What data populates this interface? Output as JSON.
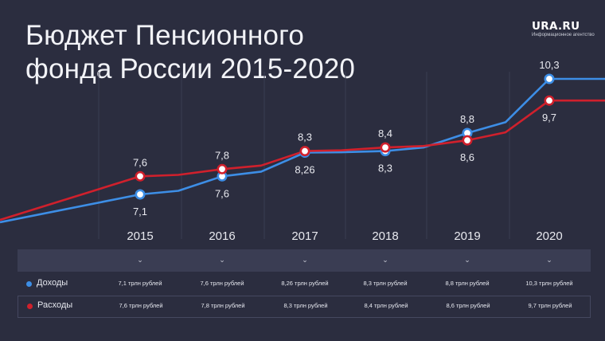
{
  "title": {
    "line1": "Бюджет Пенсионного",
    "line2": "фонда России 2015-2020"
  },
  "logo": {
    "brand": "URA.RU",
    "subtitle": "Информационное агентство"
  },
  "colors": {
    "background": "#2b2d3f",
    "income": "#3d8ee6",
    "expense": "#d0202c",
    "bar": "#3a3d53"
  },
  "table": {
    "years": [
      "2015",
      "2016",
      "2017",
      "2018",
      "2019",
      "2020"
    ],
    "chevron": "⌄",
    "income_label": "Доходы",
    "expense_label": "Расходы",
    "income_cells": [
      "7,1 трлн рублей",
      "7,6 трлн рублей",
      "8,26 трлн рублей",
      "8,3 трлн рублей",
      "8,8 трлн рублей",
      "10,3 трлн рублей"
    ],
    "expense_cells": [
      "7,6 трлн рублей",
      "7,8 трлн рублей",
      "8,3 трлн рублей",
      "8,4 трлн рублей",
      "8,6 трлн рублей",
      "9,7 трлн рублей"
    ]
  },
  "chart_data": {
    "type": "line",
    "x": [
      2015,
      2016,
      2017,
      2018,
      2019,
      2020
    ],
    "series": [
      {
        "name": "Доходы",
        "values": [
          7.1,
          7.6,
          8.26,
          8.3,
          8.8,
          10.3
        ],
        "labels": [
          "7,1",
          "7,6",
          "8,26",
          "8,3",
          "8,8",
          "10,3"
        ],
        "color": "#3d8ee6"
      },
      {
        "name": "Расходы",
        "values": [
          7.6,
          7.8,
          8.3,
          8.4,
          8.6,
          9.7
        ],
        "labels": [
          "7,6",
          "7,8",
          "8,3",
          "8,4",
          "8,6",
          "9,7"
        ],
        "color": "#d0202c"
      }
    ],
    "title": "Бюджет Пенсионного фонда России 2015-2020",
    "xlabel": "",
    "ylabel": "",
    "grid": "vertical"
  }
}
